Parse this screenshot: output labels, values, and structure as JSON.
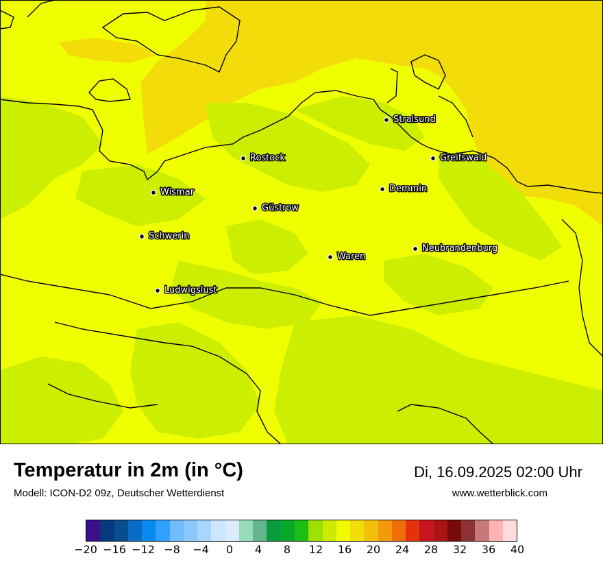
{
  "map": {
    "colors": {
      "base": "#f0ff00",
      "cooler": "#ccee00",
      "warmer": "#f2dd0a",
      "coast": "#000000"
    },
    "cities": [
      {
        "name": "Stralsund"
      },
      {
        "name": "Rostock"
      },
      {
        "name": "Greifswald"
      },
      {
        "name": "Wismar"
      },
      {
        "name": "Demmin"
      },
      {
        "name": "Güstrow"
      },
      {
        "name": "Schwerin"
      },
      {
        "name": "Neubrandenburg"
      },
      {
        "name": "Waren"
      },
      {
        "name": "Ludwigslust"
      }
    ]
  },
  "footer": {
    "title": "Temperatur in 2m (in °C)",
    "subtitle": "Modell: ICON-D2 09z, Deutscher Wetterdienst",
    "datetime": "Di, 16.09.2025 02:00 Uhr",
    "website": "www.wetterblick.com"
  },
  "legend": {
    "colors": [
      "#3b0f8c",
      "#053a7d",
      "#064e8f",
      "#0a6cc5",
      "#0889f0",
      "#32a0ff",
      "#6fbcff",
      "#8cc8ff",
      "#a9d6ff",
      "#cde6ff",
      "#dcecff",
      "#96dcb8",
      "#64b48c",
      "#089c3c",
      "#08a82a",
      "#1cbe16",
      "#9ee000",
      "#cdeb00",
      "#f0fa00",
      "#f2dc0a",
      "#f2c00a",
      "#f29a0a",
      "#f06e0a",
      "#e6320a",
      "#c8141e",
      "#aa1414",
      "#780a0a",
      "#8c3232",
      "#c87878",
      "#ffb4b4",
      "#ffdcdc"
    ],
    "ticks": [
      "−20",
      "−16",
      "−12",
      "−8",
      "−4",
      "0",
      "4",
      "8",
      "12",
      "16",
      "20",
      "24",
      "28",
      "32",
      "36",
      "40"
    ],
    "tick_values": [
      -20,
      -16,
      -12,
      -8,
      -4,
      0,
      4,
      8,
      12,
      16,
      20,
      24,
      28,
      32,
      36,
      40
    ],
    "min": -20,
    "max": 40
  }
}
